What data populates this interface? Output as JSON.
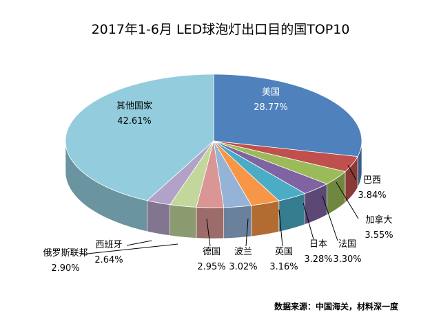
{
  "chart_data": {
    "type": "pie",
    "style": "3d",
    "title": "2017年1-6月 LED球泡灯出口目的国TOP10",
    "source": "数据来源：中国海关，材料深一度",
    "slices": [
      {
        "label": "美国",
        "value": 28.77,
        "text": "28.77%",
        "color": "#4F81BD"
      },
      {
        "label": "巴西",
        "value": 3.84,
        "text": "3.84%",
        "color": "#C0504D"
      },
      {
        "label": "加拿大",
        "value": 3.55,
        "text": "3.55%",
        "color": "#9BBB59"
      },
      {
        "label": "法国",
        "value": 3.3,
        "text": "3.30%",
        "color": "#8064A2"
      },
      {
        "label": "日本",
        "value": 3.28,
        "text": "3.28%",
        "color": "#4BACC6"
      },
      {
        "label": "英国",
        "value": 3.16,
        "text": "3.16%",
        "color": "#F79646"
      },
      {
        "label": "波兰",
        "value": 3.02,
        "text": "3.02%",
        "color": "#95B3D7"
      },
      {
        "label": "德国",
        "value": 2.95,
        "text": "2.95%",
        "color": "#D99694"
      },
      {
        "label": "俄罗斯联邦",
        "value": 2.9,
        "text": "2.90%",
        "color": "#C3D69B"
      },
      {
        "label": "西班牙",
        "value": 2.64,
        "text": "2.64%",
        "color": "#B3A2C7"
      },
      {
        "label": "其他国家",
        "value": 42.61,
        "text": "42.61%",
        "color": "#93CDDD"
      }
    ]
  }
}
